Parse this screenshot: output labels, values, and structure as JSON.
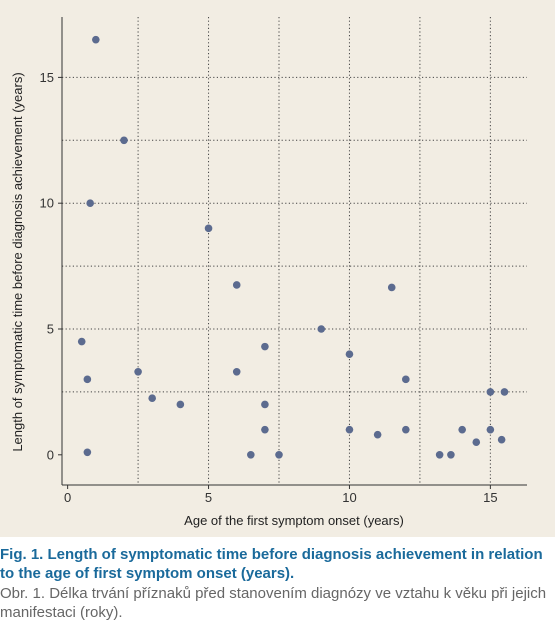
{
  "chart_data": {
    "type": "scatter",
    "title": "",
    "xlabel": "Age of the first symptom onset (years)",
    "ylabel": "Length of symptomatic time before diagnosis achievement (years)",
    "xlim": [
      -0.2,
      16.3
    ],
    "ylim": [
      -1.2,
      17.4
    ],
    "x_ticks": [
      0,
      5,
      10,
      15
    ],
    "y_ticks": [
      0,
      5,
      10,
      15
    ],
    "x_gridlines": [
      2.5,
      5,
      7.5,
      10,
      12.5,
      15
    ],
    "y_gridlines": [
      2.5,
      5,
      7.5,
      10,
      12.5,
      15
    ],
    "grid": "dotted",
    "marker_color": "#5c6b8f",
    "background_color": "#f2ede3",
    "points": [
      {
        "x": 1.0,
        "y": 16.5
      },
      {
        "x": 2.0,
        "y": 12.5
      },
      {
        "x": 0.8,
        "y": 10.0
      },
      {
        "x": 0.5,
        "y": 4.5
      },
      {
        "x": 0.7,
        "y": 3.0
      },
      {
        "x": 0.7,
        "y": 0.1
      },
      {
        "x": 2.5,
        "y": 3.3
      },
      {
        "x": 3.0,
        "y": 2.25
      },
      {
        "x": 4.0,
        "y": 2.0
      },
      {
        "x": 5.0,
        "y": 9.0
      },
      {
        "x": 6.0,
        "y": 6.75
      },
      {
        "x": 6.0,
        "y": 3.3
      },
      {
        "x": 6.5,
        "y": 0.0
      },
      {
        "x": 7.0,
        "y": 4.3
      },
      {
        "x": 7.0,
        "y": 2.0
      },
      {
        "x": 7.0,
        "y": 1.0
      },
      {
        "x": 7.5,
        "y": 0.0
      },
      {
        "x": 9.0,
        "y": 5.0
      },
      {
        "x": 10.0,
        "y": 4.0
      },
      {
        "x": 10.0,
        "y": 1.0
      },
      {
        "x": 11.0,
        "y": 0.8
      },
      {
        "x": 11.5,
        "y": 6.65
      },
      {
        "x": 12.0,
        "y": 3.0
      },
      {
        "x": 12.0,
        "y": 1.0
      },
      {
        "x": 13.2,
        "y": 0.0
      },
      {
        "x": 13.6,
        "y": 0.0
      },
      {
        "x": 14.0,
        "y": 1.0
      },
      {
        "x": 14.5,
        "y": 0.5
      },
      {
        "x": 15.0,
        "y": 2.5
      },
      {
        "x": 15.0,
        "y": 1.0
      },
      {
        "x": 15.4,
        "y": 0.6
      },
      {
        "x": 15.5,
        "y": 2.5
      }
    ]
  },
  "caption": {
    "english": "Fig. 1. Length of symptomatic time before diagnosis achievement in relation to the age of first symptom onset (years).",
    "czech": "Obr. 1. Délka trvání příznaků před stanovením diagnózy ve vztahu k věku při jejich manifestaci (roky).",
    "english_color": "#1a6a9b",
    "czech_color": "#666666"
  }
}
